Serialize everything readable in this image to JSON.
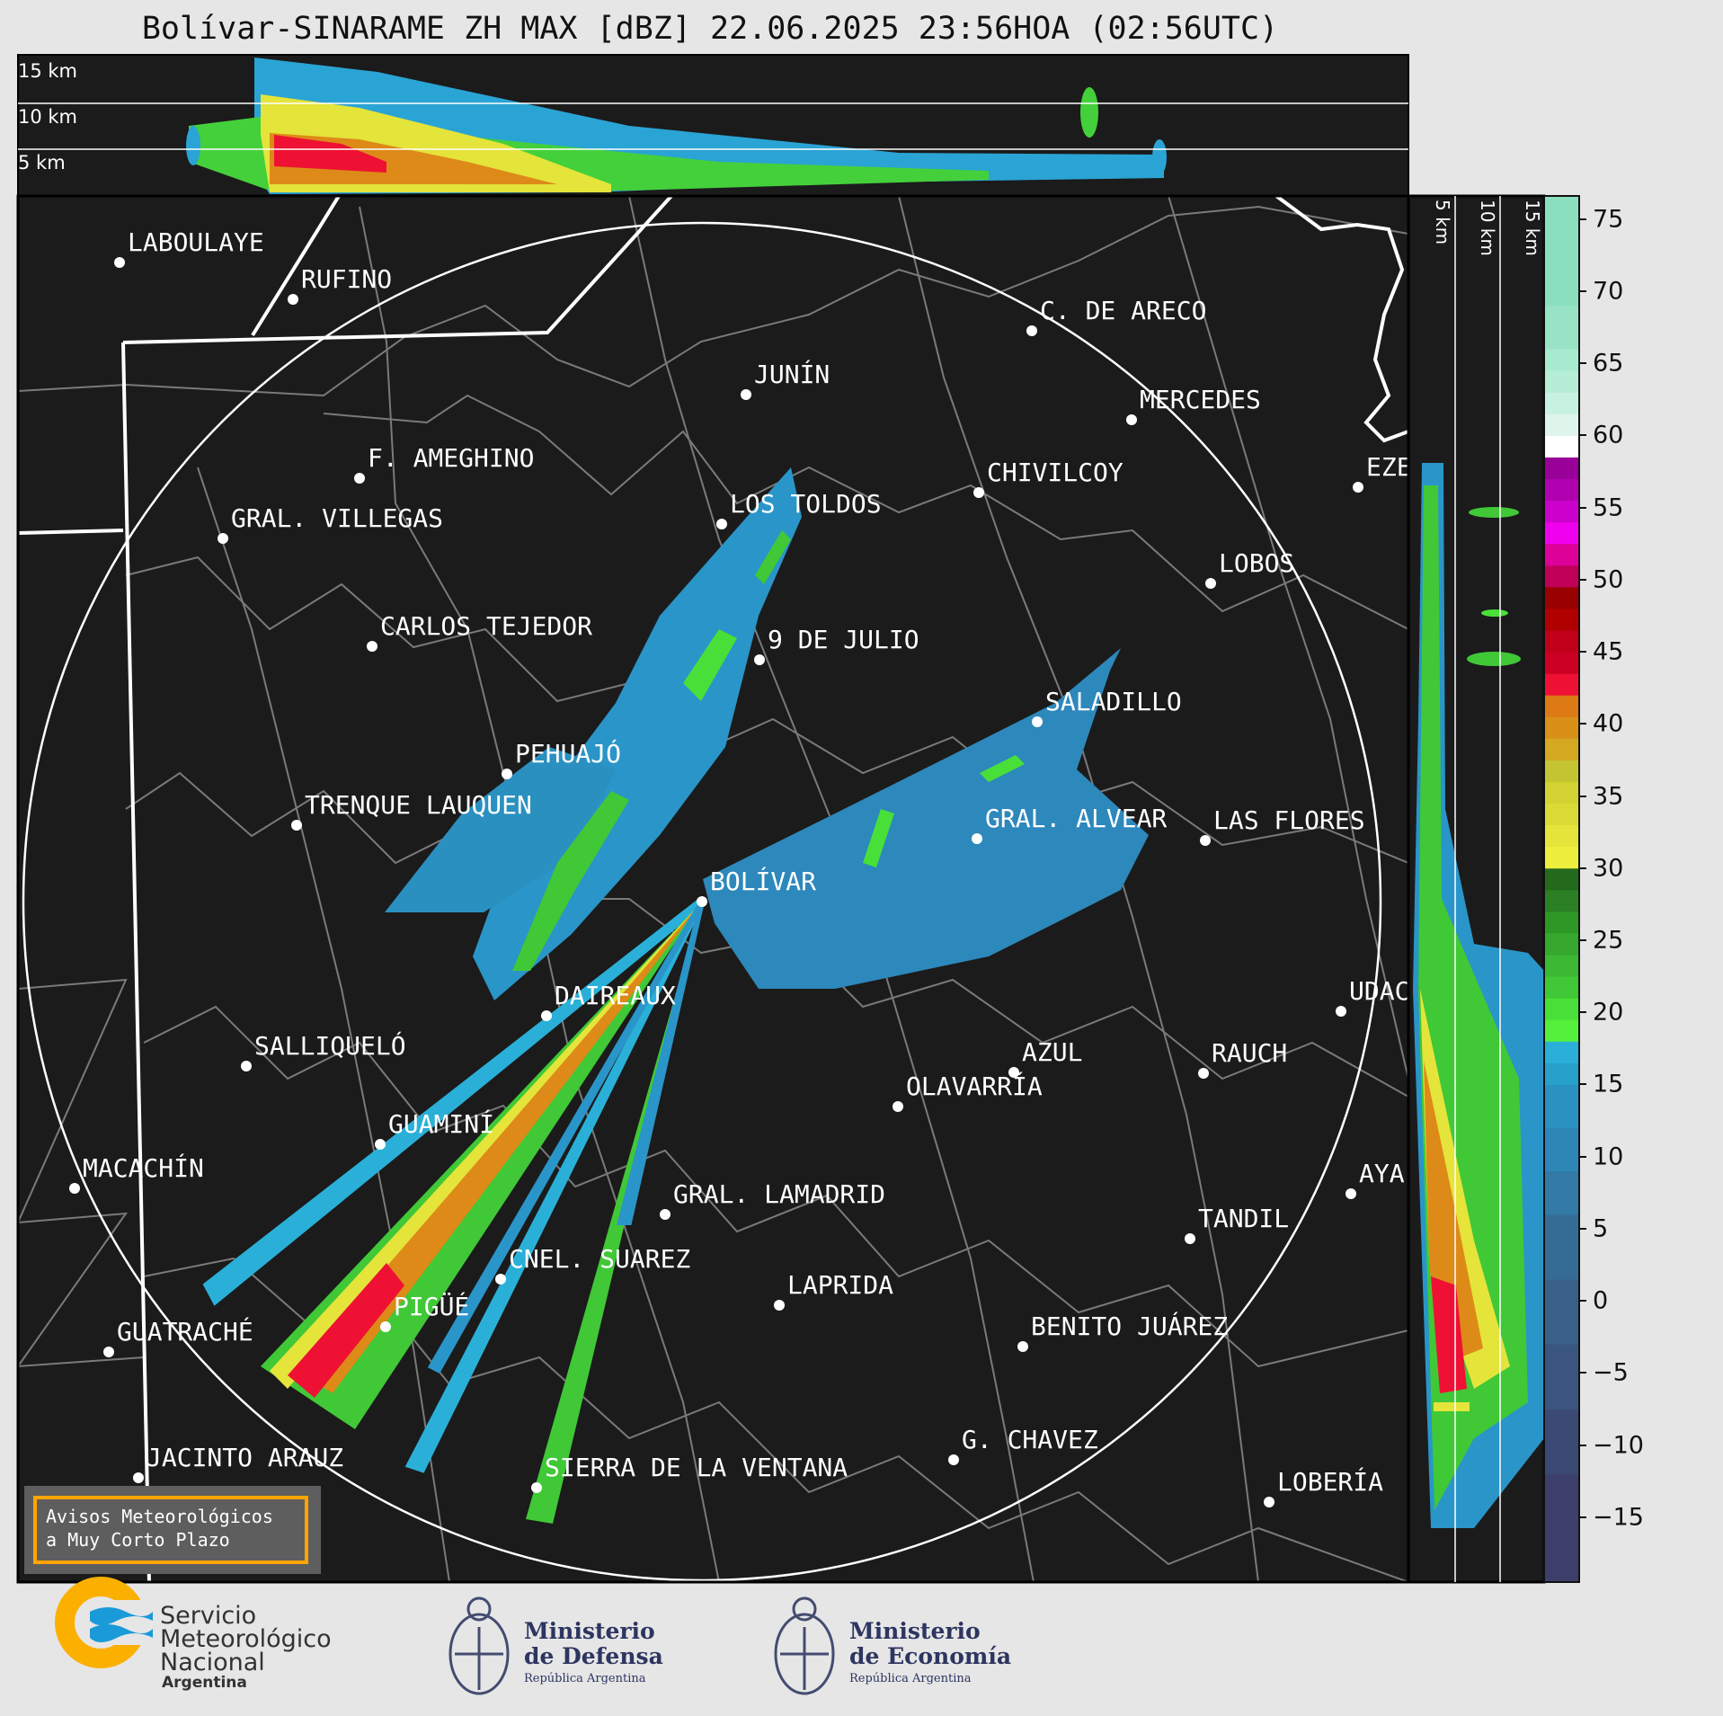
{
  "title": "Bolívar-SINARAME ZH MAX [dBZ] 22.06.2025 23:56HOA (02:56UTC)",
  "top_panel": {
    "heights": [
      "15 km",
      "10 km",
      "5 km"
    ]
  },
  "right_panel": {
    "heights": [
      "5 km",
      "10 km",
      "15 km"
    ]
  },
  "cities": [
    "LABOULAYE",
    "RUFINO",
    "C. DE ARECO",
    "JUNÍN",
    "MERCEDES",
    "F. AMEGHINO",
    "CHIVILCOY",
    "EZE",
    "GRAL. VILLEGAS",
    "LOS TOLDOS",
    "LOBOS",
    "CARLOS TEJEDOR",
    "9 DE JULIO",
    "SALADILLO",
    "PEHUAJÓ",
    "TRENQUE LAUQUEN",
    "GRAL. ALVEAR",
    "LAS FLORES",
    "BOLÍVAR",
    "DAIREAUX",
    "UDAC",
    "SALLIQUELÓ",
    "AZUL",
    "RAUCH",
    "OLAVARRÍA",
    "GUAMINÍ",
    "MACACHÍN",
    "AYA",
    "GRAL. LAMADRID",
    "TANDIL",
    "CNEL. SUAREZ",
    "LAPRIDA",
    "PIGÜÉ",
    "GUATRACHÉ",
    "BENITO JUÁREZ",
    "G. CHAVEZ",
    "SIERRA DE LA VENTANA",
    "JACINTO ARAUZ",
    "LOBERÍA"
  ],
  "alert_box": {
    "line1": "Avisos Meteorológicos",
    "line2": "a Muy Corto Plazo",
    "border_color": "#ffa500"
  },
  "colorbar": {
    "unit": "dBZ",
    "range": [
      -19.5,
      76.6
    ],
    "ticks": [
      "75",
      "70",
      "65",
      "60",
      "55",
      "50",
      "45",
      "40",
      "35",
      "30",
      "25",
      "20",
      "15",
      "10",
      "5",
      "0",
      "−5",
      "−10",
      "−15"
    ],
    "tick_values": [
      75,
      70,
      65,
      60,
      55,
      50,
      45,
      40,
      35,
      30,
      25,
      20,
      15,
      10,
      5,
      0,
      -5,
      -10,
      -15
    ],
    "segments": [
      [
        -19.5,
        -12,
        "#3d3f6b"
      ],
      [
        -12,
        -7.5,
        "#3b4a74"
      ],
      [
        -7.5,
        -3,
        "#3a557f"
      ],
      [
        -3,
        1.5,
        "#386088"
      ],
      [
        1.5,
        6,
        "#356c96"
      ],
      [
        6,
        9,
        "#337aa6"
      ],
      [
        9,
        12,
        "#2d86b6"
      ],
      [
        12,
        15,
        "#2a92c0"
      ],
      [
        15,
        16.5,
        "#28a0cc"
      ],
      [
        16.5,
        18,
        "#2ab0d8"
      ],
      [
        18,
        19.5,
        "#55f03c"
      ],
      [
        19.5,
        21,
        "#48e038"
      ],
      [
        21,
        22.5,
        "#40c837"
      ],
      [
        22.5,
        24,
        "#3cb834"
      ],
      [
        24,
        25.5,
        "#36a82e"
      ],
      [
        25.5,
        27,
        "#2e9826"
      ],
      [
        27,
        28.5,
        "#2a8022"
      ],
      [
        28.5,
        30,
        "#236a1c"
      ],
      [
        30,
        31.5,
        "#eeee3c"
      ],
      [
        31.5,
        33,
        "#e4e43a"
      ],
      [
        33,
        34.5,
        "#dada36"
      ],
      [
        34.5,
        36,
        "#d2d232"
      ],
      [
        36,
        37.5,
        "#c4c432"
      ],
      [
        37.5,
        39,
        "#d4a820"
      ],
      [
        39,
        40.5,
        "#d89018"
      ],
      [
        40.5,
        42,
        "#dd7a15"
      ],
      [
        42,
        43.5,
        "#ee1133"
      ],
      [
        43.5,
        45,
        "#cc0022"
      ],
      [
        45,
        46.5,
        "#c00018"
      ],
      [
        46.5,
        48,
        "#b00000"
      ],
      [
        48,
        49.5,
        "#990000"
      ],
      [
        49.5,
        51,
        "#c00058"
      ],
      [
        51,
        52.5,
        "#dd0099"
      ],
      [
        52.5,
        54,
        "#ee00ee"
      ],
      [
        54,
        55.5,
        "#cc00cc"
      ],
      [
        55.5,
        57,
        "#b000b0"
      ],
      [
        57,
        58.5,
        "#990099"
      ],
      [
        58.5,
        60,
        "#ffffff"
      ],
      [
        60,
        61.5,
        "#ddf5ea"
      ],
      [
        61.5,
        63,
        "#c7f1e0"
      ],
      [
        63,
        64.5,
        "#b6edd6"
      ],
      [
        64.5,
        66,
        "#a8ead0"
      ],
      [
        66,
        69,
        "#98e3c6"
      ],
      [
        69,
        76.6,
        "#8adfbf"
      ]
    ]
  },
  "logos": {
    "smn": {
      "line1": "Servicio",
      "line2": "Meteorológico",
      "line3": "Nacional",
      "line4": "Argentina"
    },
    "defensa": {
      "line1": "Ministerio",
      "line2": "de Defensa",
      "line3": "República Argentina"
    },
    "economia": {
      "line1": "Ministerio",
      "line2": "de Economía",
      "line3": "República Argentina"
    }
  }
}
